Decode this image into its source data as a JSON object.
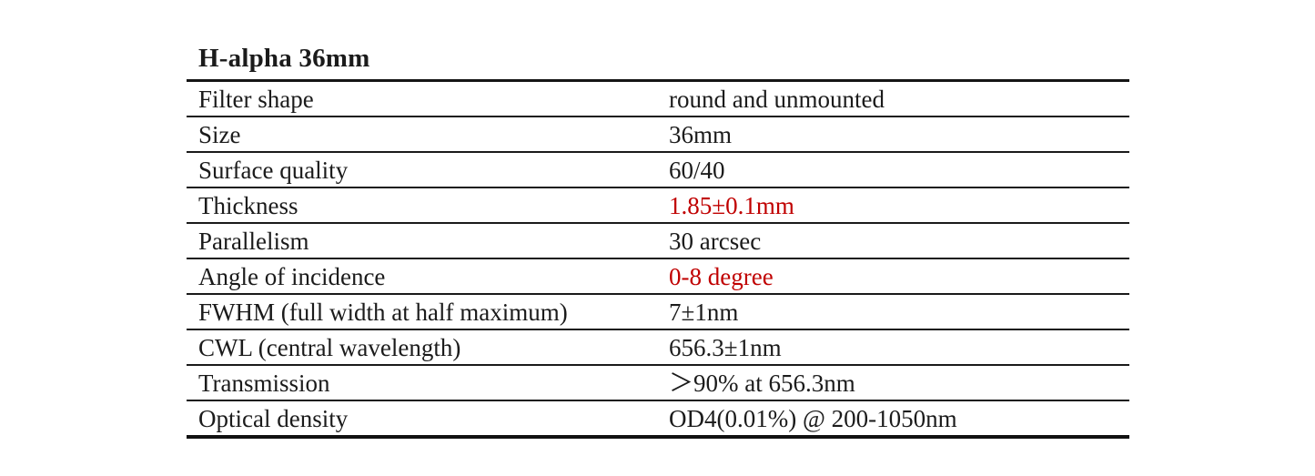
{
  "page": {
    "title": "H-alpha 36mm"
  },
  "table": {
    "rows": [
      {
        "label": "Filter shape",
        "value": "round and unmounted",
        "highlight": false
      },
      {
        "label": "Size",
        "value": "36mm",
        "highlight": false
      },
      {
        "label": "Surface quality",
        "value": "60/40",
        "highlight": false
      },
      {
        "label": "Thickness",
        "value": "1.85±0.1mm",
        "highlight": true
      },
      {
        "label": "Parallelism",
        "value": "30 arcsec",
        "highlight": false
      },
      {
        "label": "Angle of incidence",
        "value": "0-8 degree",
        "highlight": true
      },
      {
        "label": "FWHM (full width at half maximum)",
        "value": "7±1nm",
        "highlight": false
      },
      {
        "label": "CWL (central wavelength)",
        "value": "656.3±1nm",
        "highlight": false
      },
      {
        "label": "Transmission",
        "value": "＞90% at 656.3nm",
        "highlight": false
      },
      {
        "label": "Optical density",
        "value": "OD4(0.01%) @ 200-1050nm",
        "highlight": false
      }
    ],
    "colors": {
      "highlight_red": "#c00000",
      "text": "#1b1b1b",
      "line": "#1a1a1a"
    }
  }
}
